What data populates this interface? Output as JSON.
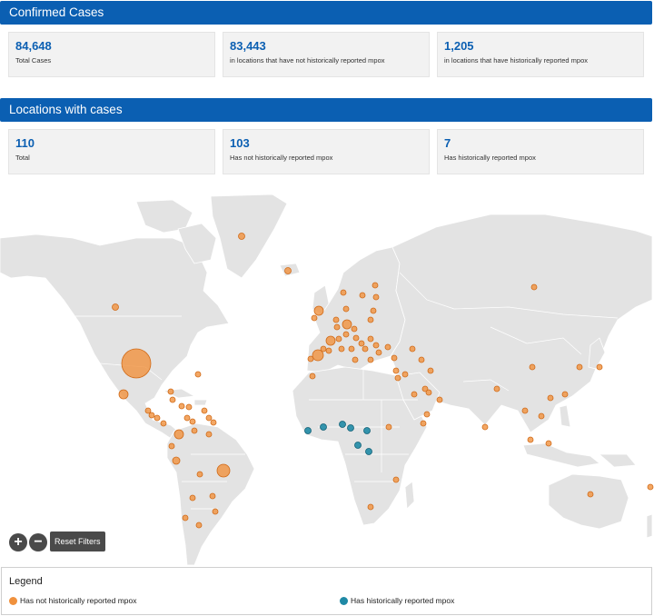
{
  "confirmed_cases": {
    "title": "Confirmed Cases",
    "cards": [
      {
        "value": "84,648",
        "label": "Total Cases"
      },
      {
        "value": "83,443",
        "label": "in locations that have not historically reported mpox"
      },
      {
        "value": "1,205",
        "label": "in locations that have historically reported mpox"
      }
    ]
  },
  "locations": {
    "title": "Locations with cases",
    "cards": [
      {
        "value": "110",
        "label": "Total"
      },
      {
        "value": "103",
        "label": "Has not historically reported mpox"
      },
      {
        "value": "7",
        "label": "Has historically reported mpox"
      }
    ]
  },
  "map": {
    "colors": {
      "land": "#e3e3e3",
      "border": "#ffffff",
      "not_historical": "#f0913d",
      "historical": "#1f89a5"
    },
    "controls": {
      "zoom_in": "+",
      "zoom_out": "−",
      "reset": "Reset Filters"
    }
  },
  "legend": {
    "title": "Legend",
    "items": [
      {
        "label": "Has not historically reported mpox",
        "color": "#f0913d"
      },
      {
        "label": "Has historically reported mpox",
        "color": "#1f89a5"
      }
    ]
  }
}
